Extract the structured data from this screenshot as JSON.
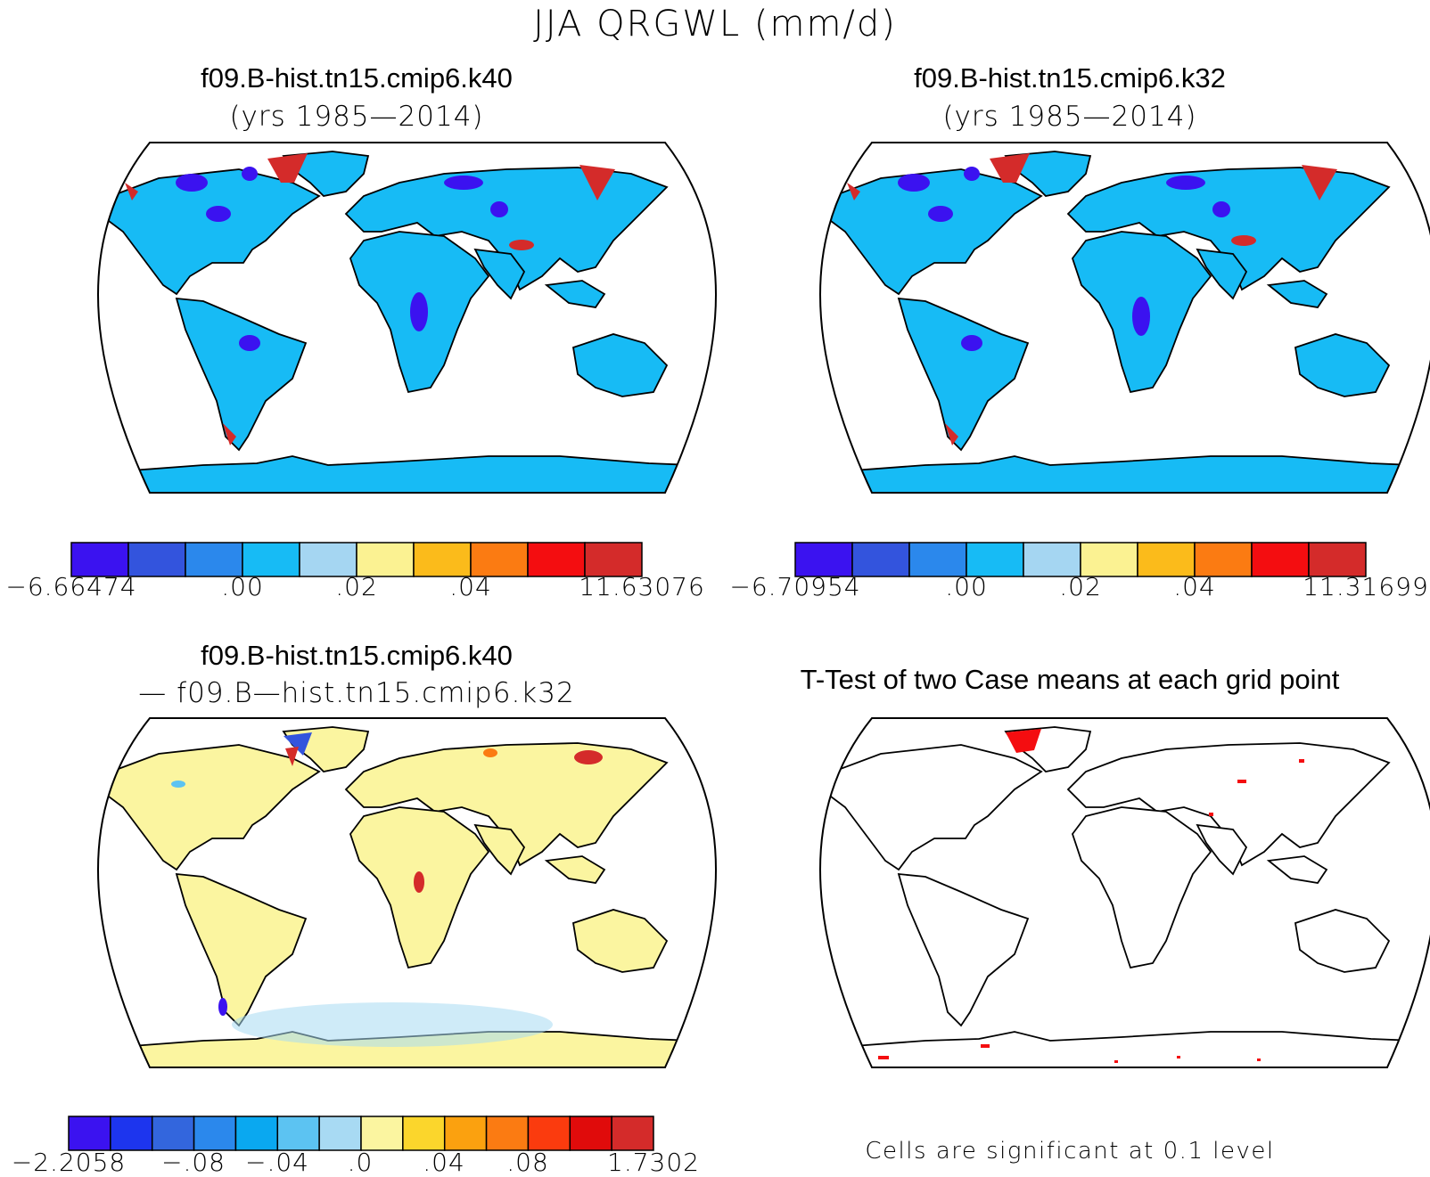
{
  "title": "JJA QRGWL (mm/d)",
  "panels": [
    {
      "title": "f09.B-hist.tn15.cmip6.k40",
      "subtitle": "(yrs 1985—2014)"
    },
    {
      "title": "f09.B-hist.tn15.cmip6.k32",
      "subtitle": "(yrs 1985—2014)"
    },
    {
      "title": "f09.B-hist.tn15.cmip6.k40",
      "subtitle": "— f09.B—hist.tn15.cmip6.k32"
    },
    {
      "title": "T-Test of two Case means at each grid point",
      "subtitle": ""
    }
  ],
  "colorbars": [
    {
      "colors": [
        "#3b12f0",
        "#3354dd",
        "#2b88ec",
        "#17bbf5",
        "#a5d6f2",
        "#fbf292",
        "#fbbb1b",
        "#fb7b12",
        "#f40d10",
        "#d42b2a"
      ],
      "labels": [
        "−6.66474",
        ".00",
        ".02",
        ".04",
        "11.63076"
      ]
    },
    {
      "colors": [
        "#3b12f0",
        "#3354dd",
        "#2b88ec",
        "#17bbf5",
        "#a5d6f2",
        "#fbf292",
        "#fbbb1b",
        "#fb7b12",
        "#f40d10",
        "#d42b2a"
      ],
      "labels": [
        "−6.70954",
        ".00",
        ".02",
        ".04",
        "11.31699"
      ]
    },
    {
      "colors": [
        "#3b12f0",
        "#1d35ee",
        "#3366dd",
        "#2b88ec",
        "#0aa8f0",
        "#5cc3f2",
        "#a8daf3",
        "#fbf5a0",
        "#fbd62c",
        "#fba10f",
        "#fb7b12",
        "#fb3b0e",
        "#e00b0b",
        "#d42b2a"
      ],
      "labels": [
        "−2.2058",
        "−.08",
        "−.04",
        ".0",
        ".04",
        ".08",
        "1.7302"
      ]
    }
  ],
  "note": "Cells are significant at 0.1 level",
  "fills": {
    "land_mean": "#17bbf5",
    "land_diff": "#fbf5a0",
    "wet_spot": "#3b12f0",
    "hot_spot": "#d42b2a",
    "sig_spot": "#f40d10"
  }
}
